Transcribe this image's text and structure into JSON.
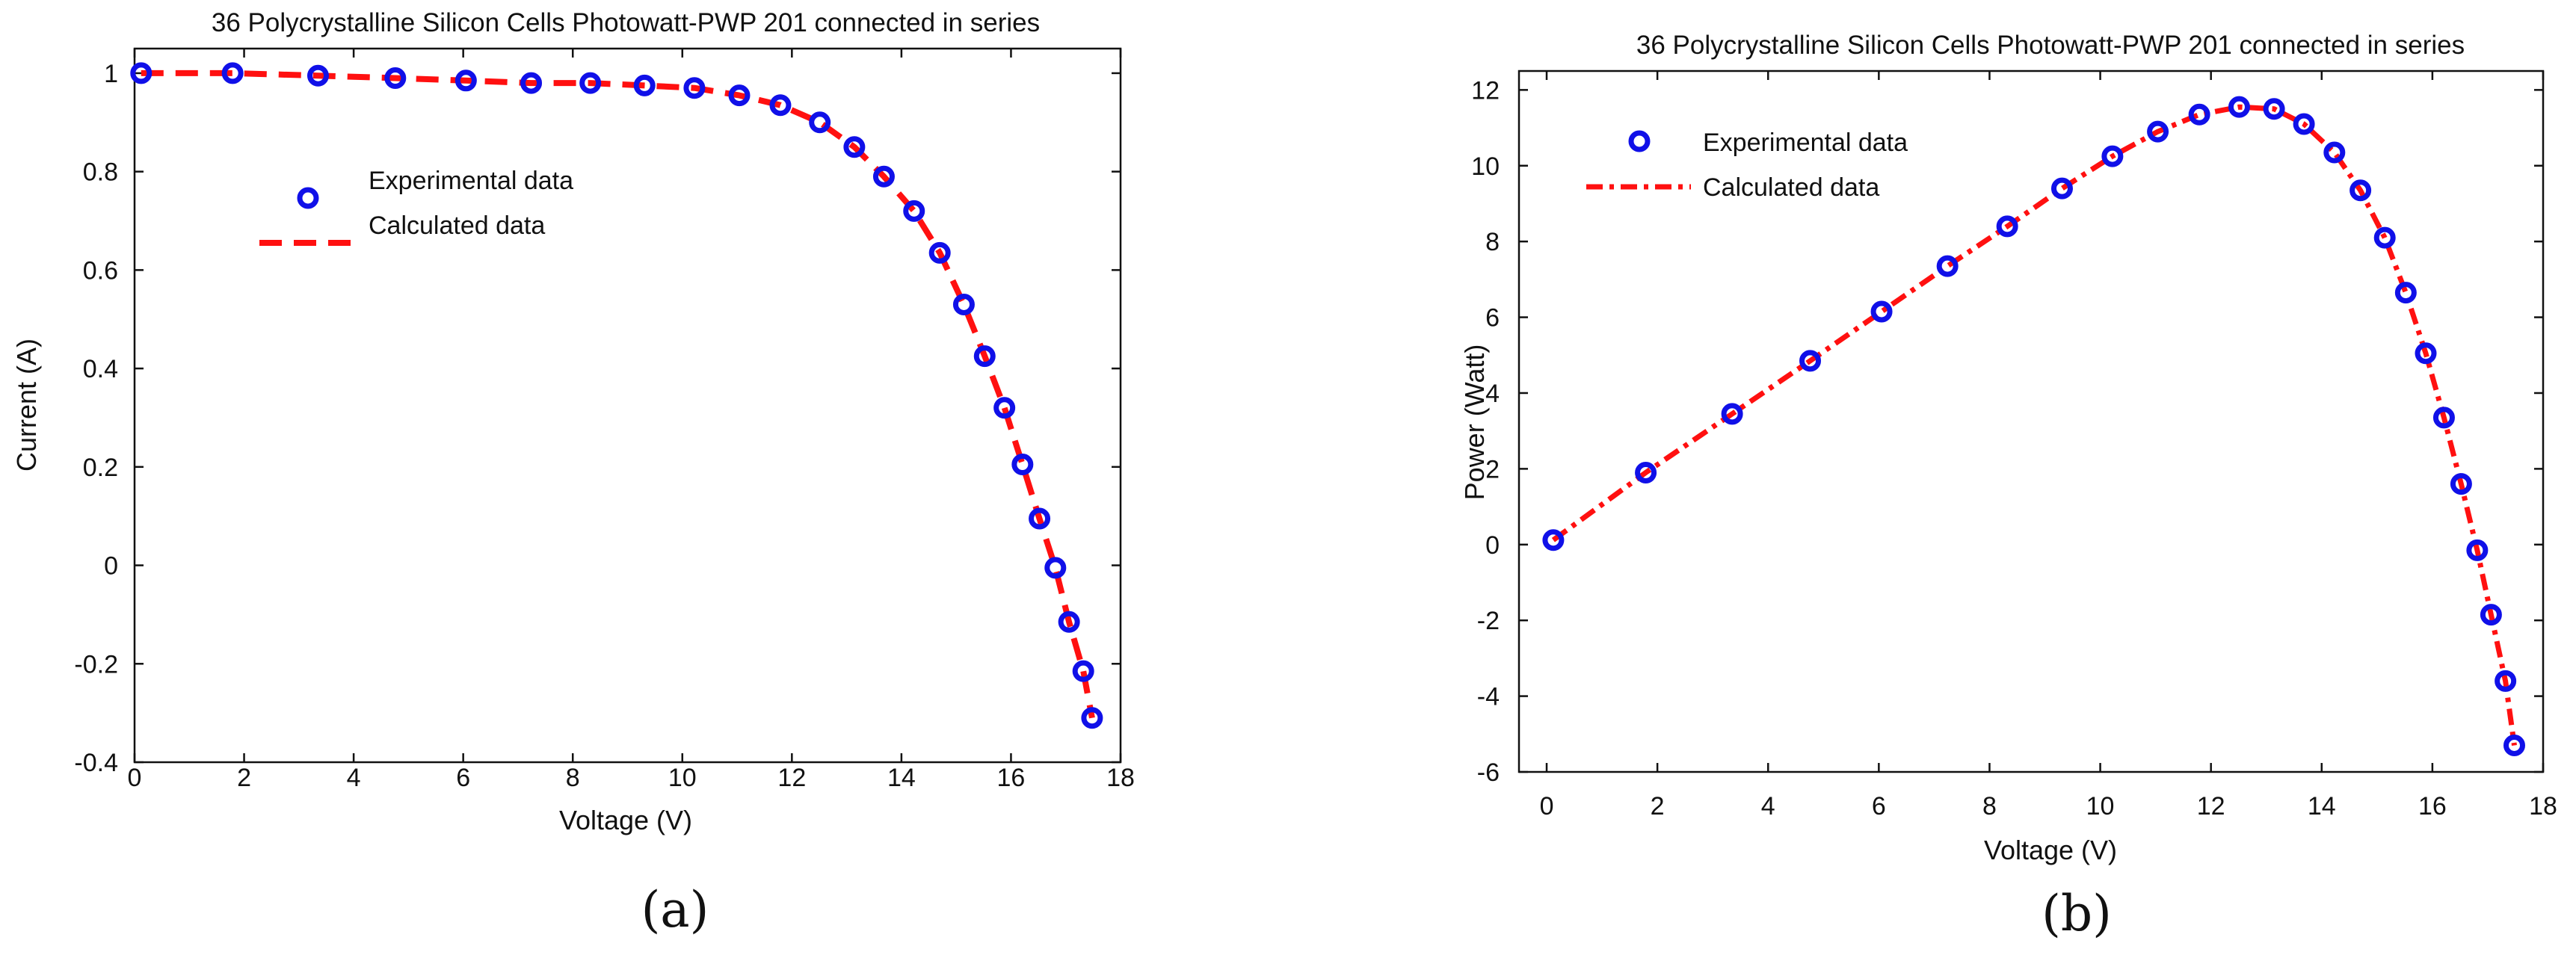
{
  "colors": {
    "experimental": "#1010e8",
    "calculated": "#ff1010",
    "axis": "#111111"
  },
  "chart_data": [
    {
      "id": "a",
      "type": "line",
      "caption": "(a)",
      "title": "36 Polycrystalline Silicon Cells Photowatt-PWP 201 connected in series",
      "xlabel": "Voltage (V)",
      "ylabel": "Current (A)",
      "xlim": [
        0,
        18
      ],
      "ylim": [
        -0.4,
        1.05
      ],
      "xticks": [
        0,
        2,
        4,
        6,
        8,
        10,
        12,
        14,
        16,
        18
      ],
      "xtick_labels": [
        "0",
        "2",
        "4",
        "6",
        "8",
        "10",
        "12",
        "14",
        "16",
        "18"
      ],
      "yticks": [
        -0.4,
        -0.2,
        0,
        0.2,
        0.4,
        0.6,
        0.8,
        1
      ],
      "ytick_labels": [
        "-0.4",
        "-0.2",
        "0",
        "0.2",
        "0.4",
        "0.6",
        "0.8",
        "1"
      ],
      "grid": false,
      "legend": {
        "position": "upper-left",
        "entries": [
          {
            "label": "Experimental data",
            "style": "circle"
          },
          {
            "label": "Calculated data",
            "style": "dashed"
          }
        ]
      },
      "series": [
        {
          "name": "Experimental data",
          "marker": "circle",
          "x": [
            0.12,
            1.79,
            3.35,
            4.76,
            6.05,
            7.24,
            8.32,
            9.31,
            10.22,
            11.04,
            11.79,
            12.51,
            13.14,
            13.68,
            14.23,
            14.7,
            15.14,
            15.52,
            15.88,
            16.21,
            16.52,
            16.81,
            17.06,
            17.32,
            17.48
          ],
          "y": [
            1.0,
            1.0,
            0.995,
            0.99,
            0.985,
            0.98,
            0.98,
            0.975,
            0.97,
            0.955,
            0.935,
            0.9,
            0.85,
            0.79,
            0.72,
            0.635,
            0.53,
            0.425,
            0.32,
            0.205,
            0.095,
            -0.005,
            -0.115,
            -0.215,
            -0.31
          ]
        },
        {
          "name": "Calculated data",
          "line": "dashed",
          "x": [
            0.12,
            1.79,
            3.35,
            4.76,
            6.05,
            7.24,
            8.32,
            9.31,
            10.22,
            11.04,
            11.79,
            12.51,
            13.14,
            13.68,
            14.23,
            14.7,
            15.14,
            15.52,
            15.88,
            16.21,
            16.52,
            16.81,
            17.06,
            17.32,
            17.48
          ],
          "y": [
            1.0,
            1.0,
            0.995,
            0.99,
            0.985,
            0.98,
            0.98,
            0.975,
            0.97,
            0.955,
            0.935,
            0.9,
            0.85,
            0.79,
            0.72,
            0.635,
            0.53,
            0.425,
            0.32,
            0.205,
            0.095,
            -0.005,
            -0.115,
            -0.215,
            -0.31
          ]
        }
      ]
    },
    {
      "id": "b",
      "type": "line",
      "caption": "(b)",
      "title": "36 Polycrystalline Silicon Cells Photowatt-PWP 201 connected in series",
      "xlabel": "Voltage (V)",
      "ylabel": "Power (Watt)",
      "xlim": [
        -0.5,
        18
      ],
      "ylim": [
        -6,
        12.5
      ],
      "xticks": [
        0,
        2,
        4,
        6,
        8,
        10,
        12,
        14,
        16,
        18
      ],
      "xtick_labels": [
        "0",
        "2",
        "4",
        "6",
        "8",
        "10",
        "12",
        "14",
        "16",
        "18"
      ],
      "yticks": [
        -6,
        -4,
        -2,
        0,
        2,
        4,
        6,
        8,
        10,
        12
      ],
      "ytick_labels": [
        "-6",
        "-4",
        "-2",
        "0",
        "2",
        "4",
        "6",
        "8",
        "10",
        "12"
      ],
      "grid": false,
      "legend": {
        "position": "upper-left",
        "entries": [
          {
            "label": "Experimental data",
            "style": "circle"
          },
          {
            "label": "Calculated data",
            "style": "dashdot"
          }
        ]
      },
      "series": [
        {
          "name": "Experimental data",
          "marker": "circle",
          "x": [
            0.12,
            1.79,
            3.35,
            4.76,
            6.05,
            7.24,
            8.32,
            9.31,
            10.22,
            11.04,
            11.79,
            12.51,
            13.14,
            13.68,
            14.23,
            14.7,
            15.14,
            15.52,
            15.88,
            16.21,
            16.52,
            16.81,
            17.06,
            17.32,
            17.48
          ],
          "y": [
            0.12,
            1.9,
            3.45,
            4.85,
            6.15,
            7.35,
            8.4,
            9.4,
            10.25,
            10.9,
            11.35,
            11.55,
            11.5,
            11.1,
            10.35,
            9.35,
            8.1,
            6.65,
            5.05,
            3.35,
            1.6,
            -0.15,
            -1.85,
            -3.6,
            -5.3
          ]
        },
        {
          "name": "Calculated data",
          "line": "dashdot",
          "x": [
            0.12,
            1.79,
            3.35,
            4.76,
            6.05,
            7.24,
            8.32,
            9.31,
            10.22,
            11.04,
            11.79,
            12.51,
            13.14,
            13.68,
            14.23,
            14.7,
            15.14,
            15.52,
            15.88,
            16.21,
            16.52,
            16.81,
            17.06,
            17.32,
            17.48
          ],
          "y": [
            0.12,
            1.9,
            3.45,
            4.85,
            6.15,
            7.35,
            8.4,
            9.4,
            10.25,
            10.9,
            11.35,
            11.55,
            11.5,
            11.1,
            10.35,
            9.35,
            8.1,
            6.65,
            5.05,
            3.35,
            1.6,
            -0.15,
            -1.85,
            -3.6,
            -5.3
          ]
        }
      ]
    }
  ]
}
